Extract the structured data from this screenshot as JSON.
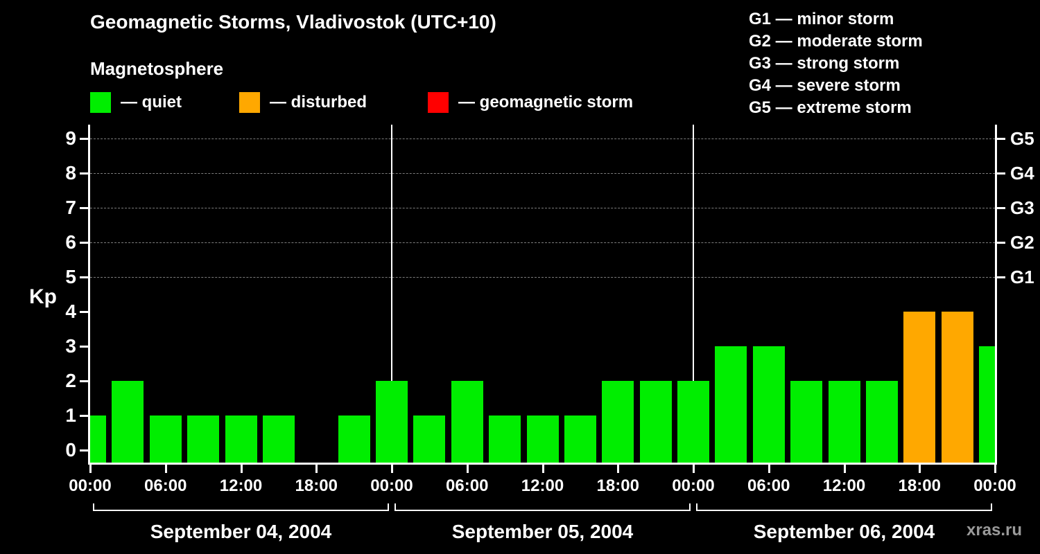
{
  "header": {
    "title": "Geomagnetic Storms, Vladivostok (UTC+10)",
    "subtitle": "Magnetosphere"
  },
  "legend": {
    "items": [
      {
        "name": "quiet",
        "label": "— quiet",
        "color": "#00ee00"
      },
      {
        "name": "disturbed",
        "label": "— disturbed",
        "color": "#ffa800"
      },
      {
        "name": "storm",
        "label": "— geomagnetic storm",
        "color": "#ff0000"
      }
    ]
  },
  "storm_scale": [
    "G1 — minor storm",
    "G2 — moderate storm",
    "G3 — strong storm",
    "G4 — severe storm",
    "G5 — extreme storm"
  ],
  "watermark": "xras.ru",
  "chart_data": {
    "type": "bar",
    "title": "Geomagnetic Storms, Vladivostok (UTC+10)",
    "xlabel": "",
    "ylabel": "Kp",
    "ylim": [
      0,
      9
    ],
    "y_ticks": [
      0,
      1,
      2,
      3,
      4,
      5,
      6,
      7,
      8,
      9
    ],
    "grid_levels": [
      {
        "kp": 5,
        "label": "G1"
      },
      {
        "kp": 6,
        "label": "G2"
      },
      {
        "kp": 7,
        "label": "G3"
      },
      {
        "kp": 8,
        "label": "G4"
      },
      {
        "kp": 9,
        "label": "G5"
      }
    ],
    "x_tick_interval_hours": 6,
    "x_tick_labels_cycle": [
      "00:00",
      "06:00",
      "12:00",
      "18:00"
    ],
    "bar_interval_hours": 3,
    "days": [
      {
        "date": "September 04, 2004",
        "kp": [
          1,
          2,
          1,
          1,
          1,
          1,
          0,
          1
        ]
      },
      {
        "date": "September 05, 2004",
        "kp": [
          2,
          1,
          2,
          1,
          1,
          1,
          2,
          2
        ]
      },
      {
        "date": "September 06, 2004",
        "kp": [
          2,
          3,
          3,
          2,
          2,
          2,
          4,
          4
        ]
      }
    ],
    "trailing_bar_kp": 3,
    "color_rules": {
      "kp_0_3": "#00ee00",
      "kp_4": "#ffa800",
      "kp_5_9": "#ff0000"
    }
  }
}
